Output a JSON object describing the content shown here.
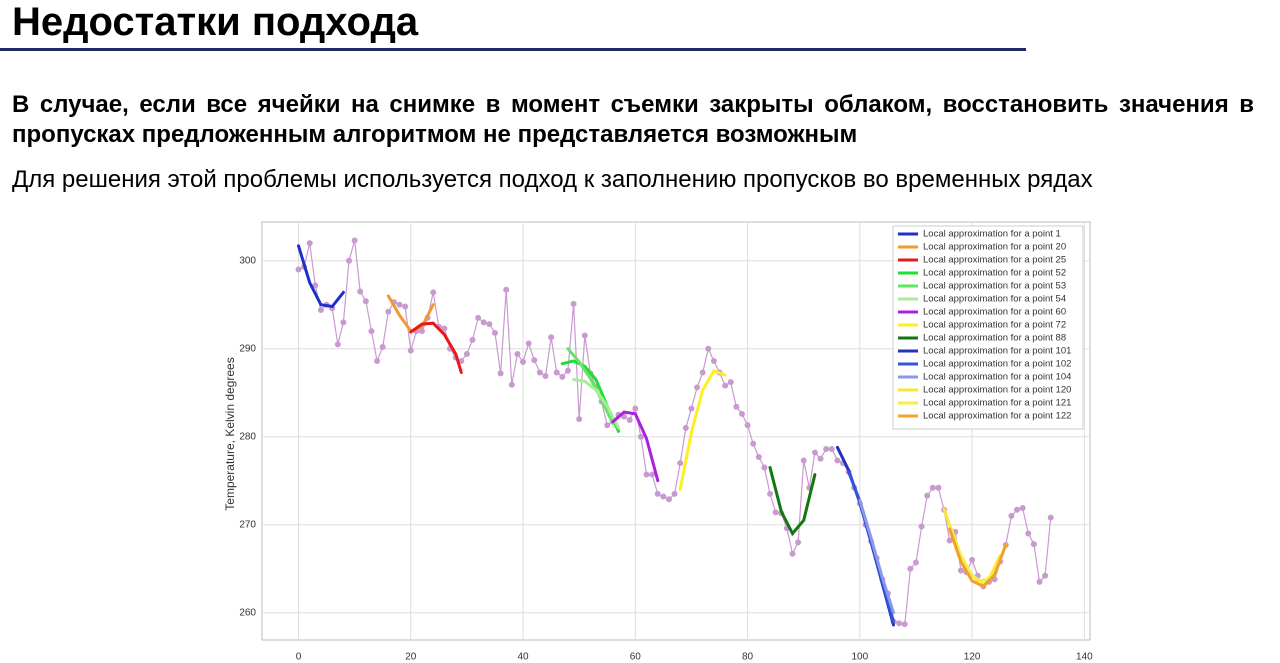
{
  "header": {
    "title": "Недостатки подхода"
  },
  "paragraphs": [
    "В случае, если все ячейки на снимке в момент съемки закрыты облаком, восстановить значения в пропусках предложенным алгоритмом не представляется возможным",
    "Для решения этой проблемы используется подход к заполнению пропусков во временных рядах"
  ],
  "chart_data": {
    "type": "line",
    "y_label": "Temperature, Kelvin degrees",
    "xlim": [
      -6.5,
      141
    ],
    "ylim": [
      256.9,
      304.4
    ],
    "xticks": [
      0,
      20,
      40,
      60,
      80,
      100,
      120,
      140
    ],
    "yticks": [
      260,
      270,
      280,
      290,
      300
    ],
    "grid": true,
    "legend": "upper right",
    "series": [
      {
        "color": "#c99ad0",
        "markers": true,
        "x": [
          0,
          1,
          2,
          3,
          4,
          5,
          6,
          7,
          8,
          9,
          10,
          11,
          12,
          13,
          14,
          15,
          16,
          17,
          18,
          19,
          20,
          21,
          22,
          23,
          24,
          25,
          26,
          27,
          28,
          29,
          30,
          31,
          32,
          33,
          34,
          35,
          36,
          37,
          38,
          39,
          40,
          41,
          42,
          43,
          44,
          45,
          46,
          47,
          48,
          49,
          50,
          51,
          52,
          53,
          54,
          55,
          56,
          57,
          58,
          59,
          60,
          61,
          62,
          63,
          64,
          65,
          66,
          67,
          68,
          69,
          70,
          71,
          72,
          73,
          74,
          75,
          76,
          77,
          78,
          79,
          80,
          81,
          82,
          83,
          84,
          85,
          86,
          87,
          88,
          89,
          90,
          91,
          92,
          93,
          94,
          95,
          96,
          97,
          98,
          99,
          100,
          101,
          102,
          103,
          104,
          105,
          106,
          107,
          108,
          109,
          110,
          111,
          112,
          113,
          114,
          115,
          116,
          117,
          118,
          119,
          120,
          121,
          122,
          123,
          124,
          125,
          126,
          127,
          128,
          129,
          130,
          131,
          132,
          133,
          134
        ],
        "values": [
          299,
          299.3,
          302,
          297.2,
          294.4,
          295,
          294.6,
          290.5,
          293,
          300,
          302.3,
          296.5,
          295.4,
          292,
          288.6,
          290.2,
          294.2,
          295.3,
          295,
          294.8,
          289.8,
          292,
          292,
          293.5,
          296.4,
          292.5,
          292.3,
          290,
          289,
          288.6,
          289.4,
          291,
          293.5,
          293,
          292.8,
          291.8,
          287.2,
          296.7,
          285.9,
          289.4,
          288.5,
          290.6,
          288.7,
          287.3,
          286.9,
          291.3,
          287.3,
          286.8,
          287.5,
          295.1,
          282,
          291.5,
          287.2,
          285.7,
          284,
          281.3,
          281.7,
          282.5,
          282.3,
          281.9,
          283.2,
          280,
          275.7,
          275.7,
          273.5,
          273.2,
          272.9,
          273.5,
          277,
          281,
          283.2,
          285.6,
          287.3,
          290,
          288.6,
          287.3,
          285.8,
          286.2,
          283.4,
          282.6,
          281.3,
          279.2,
          277.7,
          276.5,
          273.5,
          271.4,
          271.3,
          269.6,
          266.7,
          268,
          277.3,
          274.2,
          278.2,
          277.5,
          278.6,
          278.6,
          277.3,
          277,
          276,
          274.2,
          272.4,
          270,
          268.1,
          266.2,
          263.8,
          262.2,
          259,
          258.8,
          258.7,
          265,
          265.7,
          269.8,
          273.3,
          274.2,
          274.2,
          271.7,
          268.2,
          269.2,
          264.8,
          264.6,
          266,
          264.2,
          263,
          263.5,
          263.8,
          265.8,
          267.7,
          271,
          271.7,
          271.9,
          269,
          267.8,
          263.5,
          264.2,
          270.8
        ]
      },
      {
        "name": "Local approximation for a point 1",
        "color": "#1f2fcc",
        "x": [
          0,
          2,
          4,
          6,
          8
        ],
        "values": [
          301.7,
          297.5,
          295,
          294.8,
          296.4
        ]
      },
      {
        "name": "Local approximation for a point 20",
        "color": "#f09a30",
        "x": [
          16,
          18,
          20,
          22,
          24
        ],
        "values": [
          296,
          293.8,
          292,
          292.5,
          295
        ]
      },
      {
        "name": "Local approximation for a point 25",
        "color": "#e81818",
        "x": [
          20,
          22,
          24,
          26,
          28,
          29
        ],
        "values": [
          291.9,
          292.8,
          292.9,
          291.6,
          289.4,
          287.3
        ]
      },
      {
        "name": "Local approximation for a point 52",
        "color": "#22dd33",
        "x": [
          47,
          49,
          51,
          53,
          55,
          57
        ],
        "values": [
          288.3,
          288.6,
          288,
          286.5,
          283.5,
          280.6
        ]
      },
      {
        "name": "Local approximation for a point 53",
        "color": "#66e266",
        "x": [
          48,
          50,
          52,
          54,
          56
        ],
        "values": [
          290,
          288.5,
          286.6,
          284.2,
          281.5
        ]
      },
      {
        "name": "Local approximation for a point 54",
        "color": "#a8ee99",
        "x": [
          49,
          51,
          53,
          55,
          57
        ],
        "values": [
          286.5,
          286.3,
          285.3,
          283.5,
          281
        ]
      },
      {
        "name": "Local approximation for a point 60",
        "color": "#aa22dd",
        "x": [
          56,
          58,
          60,
          62,
          64
        ],
        "values": [
          281.7,
          282.8,
          282.6,
          279.8,
          275
        ]
      },
      {
        "name": "Local approximation for a point 72",
        "color": "#ffee22",
        "x": [
          68,
          70,
          72,
          74,
          76
        ],
        "values": [
          274,
          280.5,
          285.3,
          287.5,
          287
        ]
      },
      {
        "name": "Local approximation for a point 88",
        "color": "#117711",
        "x": [
          84,
          86,
          88,
          90,
          92
        ],
        "values": [
          276.5,
          271.5,
          269,
          270.5,
          275.7
        ]
      },
      {
        "name": "Local approximation for a point 101",
        "color": "#2233bb",
        "x": [
          96,
          98,
          100,
          102,
          104,
          106
        ],
        "values": [
          278.8,
          276.2,
          272.5,
          268,
          263.3,
          258.6
        ]
      },
      {
        "name": "Local approximation for a point 102",
        "color": "#3355dd",
        "x": [
          98,
          100,
          102,
          104,
          106
        ],
        "values": [
          276,
          272.7,
          268.2,
          263.5,
          259
        ]
      },
      {
        "name": "Local approximation for a point 104",
        "color": "#8899ee",
        "x": [
          100,
          102,
          104,
          106
        ],
        "values": [
          272.8,
          268.5,
          264,
          260
        ]
      },
      {
        "name": "Local approximation for a point 120",
        "color": "#ffe433",
        "x": [
          115,
          117,
          119,
          121,
          123,
          125
        ],
        "values": [
          271.8,
          268,
          265,
          263.6,
          263.8,
          266.5
        ]
      },
      {
        "name": "Local approximation for a point 121",
        "color": "#f6f040",
        "x": [
          116,
          118,
          120,
          122,
          124,
          126
        ],
        "values": [
          270,
          266.5,
          264.2,
          263.4,
          264.6,
          267.7
        ]
      },
      {
        "name": "Local approximation for a point 122",
        "color": "#f0a030",
        "x": [
          116,
          118,
          120,
          122,
          124,
          126
        ],
        "values": [
          269.5,
          265.8,
          263.6,
          263,
          264.3,
          267.7
        ]
      }
    ]
  }
}
